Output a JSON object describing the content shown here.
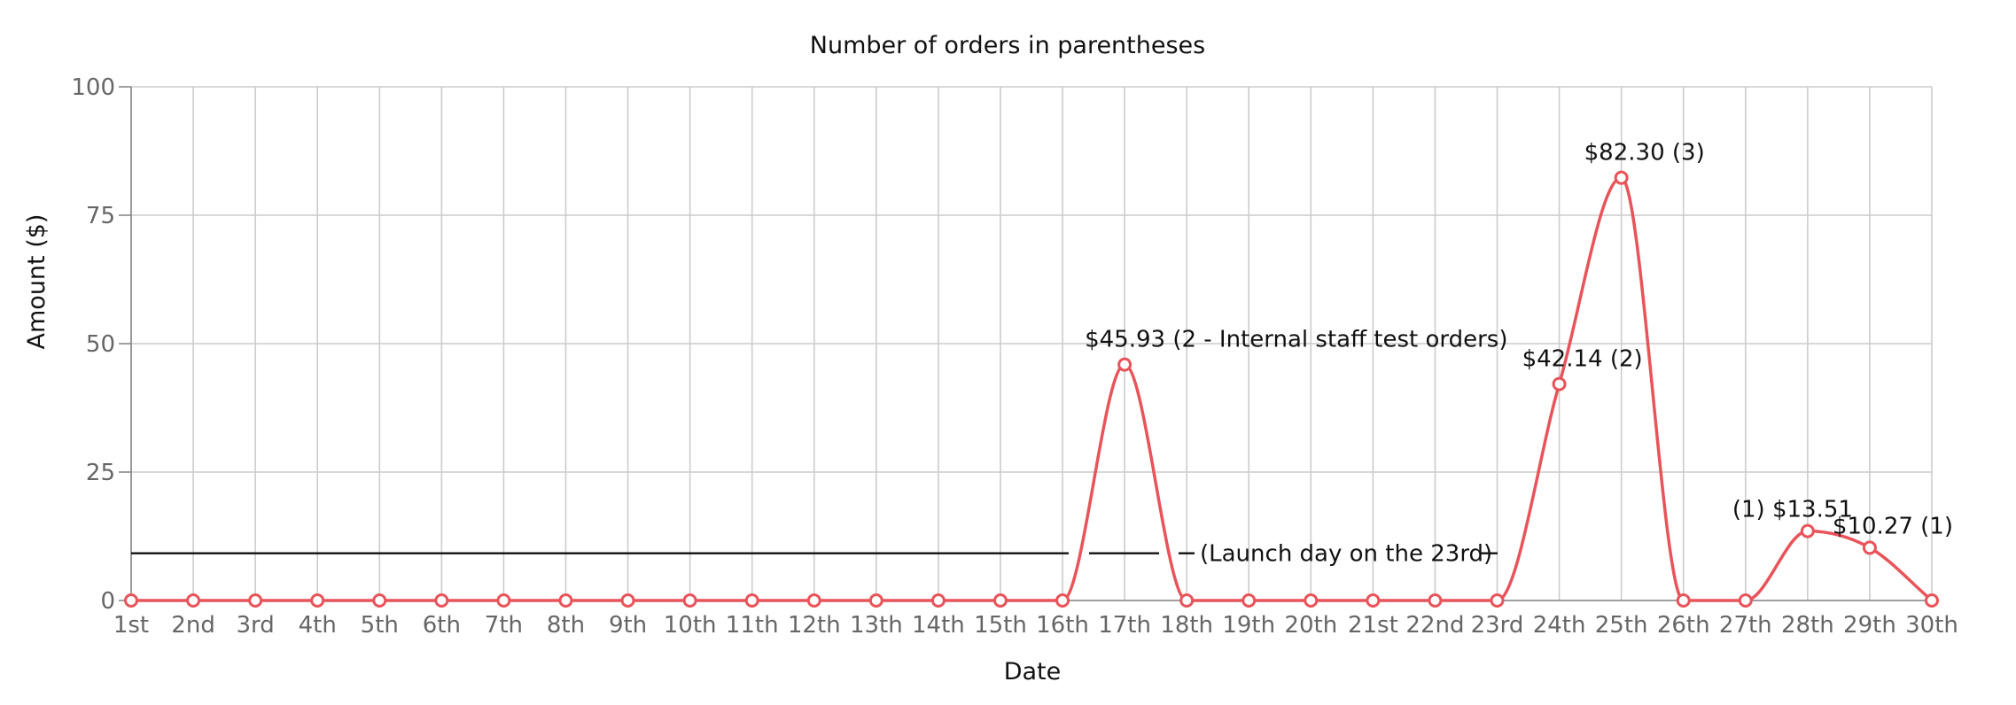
{
  "chart_data": {
    "type": "line",
    "title": "Number of orders in parentheses",
    "xlabel": "Date",
    "ylabel": "Amount ($)",
    "ylim": [
      0,
      100
    ],
    "yticks": [
      0,
      25,
      50,
      75,
      100
    ],
    "grid": true,
    "categories": [
      "1st",
      "2nd",
      "3rd",
      "4th",
      "5th",
      "6th",
      "7th",
      "8th",
      "9th",
      "10th",
      "11th",
      "12th",
      "13th",
      "14th",
      "15th",
      "16th",
      "17th",
      "18th",
      "19th",
      "20th",
      "21st",
      "22nd",
      "23rd",
      "24th",
      "25th",
      "26th",
      "27th",
      "28th",
      "29th",
      "30th"
    ],
    "series": [
      {
        "color": "#e8545a",
        "values": [
          0,
          0,
          0,
          0,
          0,
          0,
          0,
          0,
          0,
          0,
          0,
          0,
          0,
          0,
          0,
          0,
          45.93,
          0,
          0,
          0,
          0,
          0,
          0,
          42.14,
          82.3,
          0,
          0,
          13.51,
          10.27,
          0
        ]
      }
    ],
    "data_labels": [
      {
        "index": 16,
        "text": "$45.93 (2 - Internal staff test orders)"
      },
      {
        "index": 23,
        "text": "$42.14 (2)"
      },
      {
        "index": 24,
        "text": "$82.30 (3)"
      },
      {
        "index": 27,
        "text": "(1) $13.51"
      },
      {
        "index": 28,
        "text": "$10.27 (1)"
      }
    ],
    "annotations": [
      {
        "text": "(Launch day on the 23rd)",
        "y": 9.2,
        "color": "#111111"
      }
    ]
  }
}
